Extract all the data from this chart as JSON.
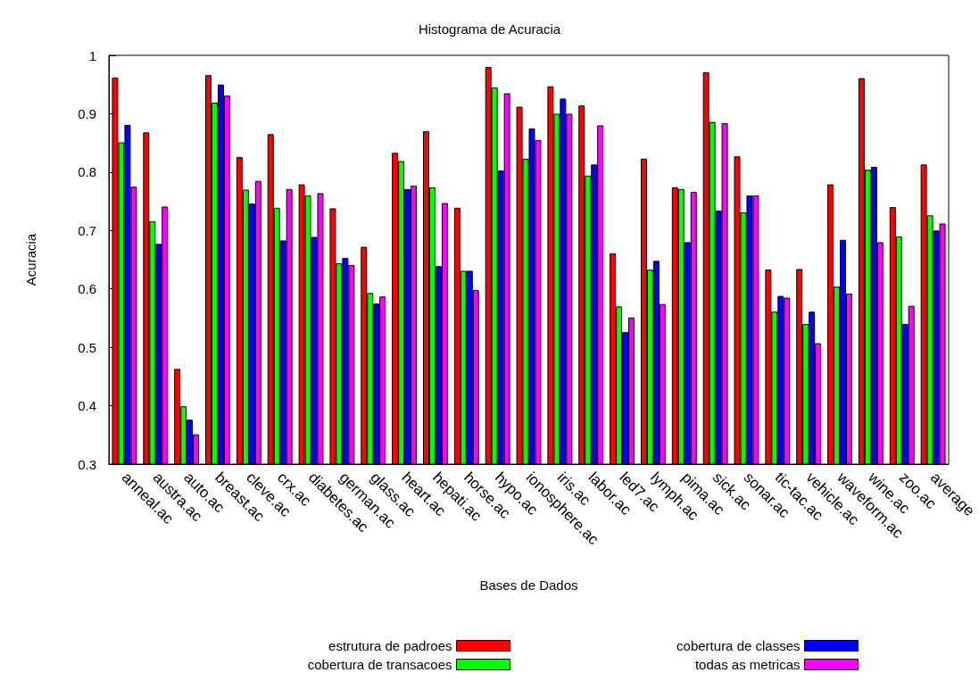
{
  "chart_data": {
    "type": "bar",
    "title": "Histograma de Acuracia",
    "xlabel": "Bases de Dados",
    "ylabel": "Acuracia",
    "categories": [
      "anneal.ac",
      "austra.ac",
      "auto.ac",
      "breast.ac",
      "cleve.ac",
      "crx.ac",
      "diabetes.ac",
      "german.ac",
      "glass.ac",
      "heart.ac",
      "hepati.ac",
      "horse.ac",
      "hypo.ac",
      "ionosphere.ac",
      "iris.ac",
      "labor.ac",
      "led7.ac",
      "lymph.ac",
      "pima.ac",
      "sick.ac",
      "sonar.ac",
      "tic-tac.ac",
      "vehicle.ac",
      "waveform.ac",
      "wine.ac",
      "zoo.ac",
      "average"
    ],
    "series": [
      {
        "name": "estrutura de padroes",
        "color": "#ff0000",
        "values": [
          0.962,
          0.868,
          0.463,
          0.966,
          0.826,
          0.865,
          0.779,
          0.738,
          0.672,
          0.833,
          0.87,
          0.739,
          0.98,
          0.912,
          0.947,
          0.914,
          0.661,
          0.823,
          0.774,
          0.971,
          0.827,
          0.633,
          0.634,
          0.779,
          0.961,
          0.74,
          0.813
        ]
      },
      {
        "name": "cobertura de transacoes",
        "color": "#00ff00",
        "values": [
          0.851,
          0.716,
          0.399,
          0.919,
          0.77,
          0.739,
          0.76,
          0.644,
          0.593,
          0.819,
          0.774,
          0.631,
          0.945,
          0.823,
          0.9,
          0.794,
          0.57,
          0.633,
          0.771,
          0.886,
          0.731,
          0.561,
          0.54,
          0.604,
          0.804,
          0.69,
          0.726
        ]
      },
      {
        "name": "cobertura de classes",
        "color": "#0000ff",
        "values": [
          0.881,
          0.677,
          0.376,
          0.95,
          0.746,
          0.683,
          0.689,
          0.653,
          0.575,
          0.771,
          0.639,
          0.631,
          0.803,
          0.875,
          0.926,
          0.813,
          0.526,
          0.648,
          0.68,
          0.734,
          0.76,
          0.588,
          0.561,
          0.684,
          0.809,
          0.54,
          0.7
        ]
      },
      {
        "name": "todas as metricas",
        "color": "#ff00ff",
        "values": [
          0.775,
          0.741,
          0.351,
          0.931,
          0.785,
          0.771,
          0.764,
          0.641,
          0.587,
          0.777,
          0.747,
          0.598,
          0.935,
          0.855,
          0.9,
          0.88,
          0.551,
          0.574,
          0.766,
          0.884,
          0.76,
          0.585,
          0.507,
          0.592,
          0.68,
          0.571,
          0.712
        ]
      }
    ],
    "ylim": [
      0.3,
      1
    ],
    "yticks": [
      0.3,
      0.4,
      0.5,
      0.6,
      0.7,
      0.8,
      0.9,
      1
    ],
    "grid": false,
    "legend": "bottom"
  }
}
